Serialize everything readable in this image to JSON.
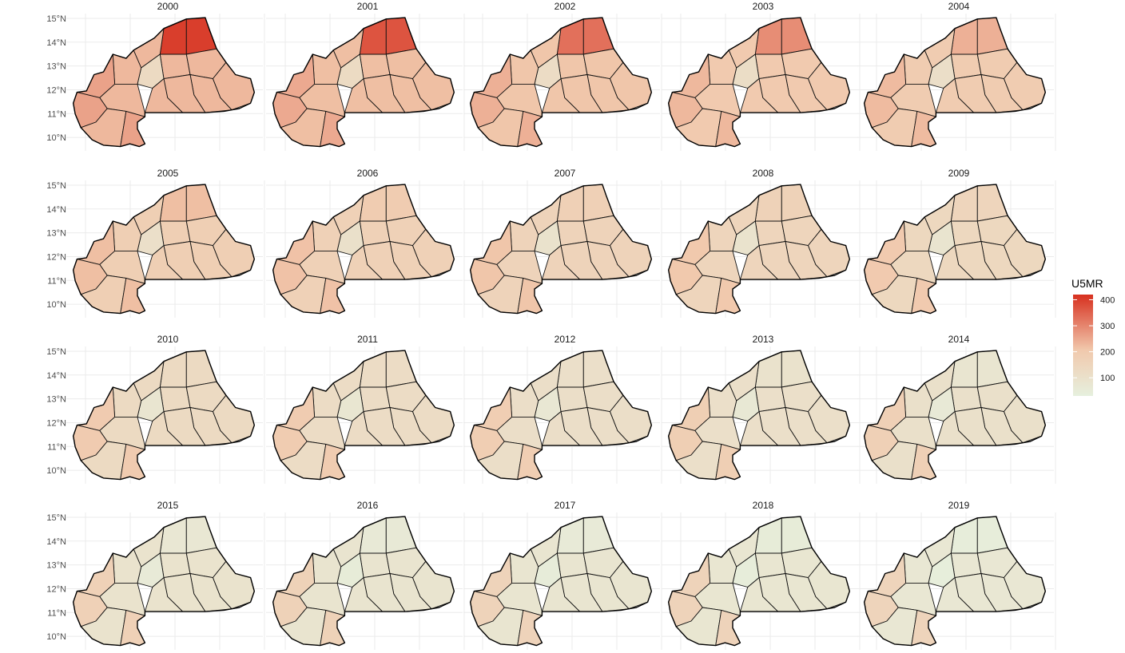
{
  "figure": {
    "type": "faceted choropleth map",
    "fill_variable": "U5MR",
    "ncol": 5,
    "nrow": 4
  },
  "facets": [
    "2000",
    "2001",
    "2002",
    "2003",
    "2004",
    "2005",
    "2006",
    "2007",
    "2008",
    "2009",
    "2010",
    "2011",
    "2012",
    "2013",
    "2014",
    "2015",
    "2016",
    "2017",
    "2018",
    "2019"
  ],
  "y_axis": {
    "tick_labels": [
      "15°N",
      "14°N",
      "13°N",
      "12°N",
      "11°N",
      "10°N"
    ],
    "tick_values": [
      15,
      14,
      13,
      12,
      11,
      10
    ]
  },
  "legend": {
    "title": "U5MR",
    "ticks": [
      "400",
      "300",
      "200",
      "100"
    ],
    "tick_values": [
      400,
      300,
      200,
      100
    ],
    "range": [
      30,
      420
    ],
    "colors": {
      "low": "#e6f0de",
      "mid": "#f1c9ad",
      "high": "#d7301f"
    }
  },
  "chart_data": {
    "type": "heatmap",
    "series_label": "U5MR",
    "years": [
      2000,
      2001,
      2002,
      2003,
      2004,
      2005,
      2006,
      2007,
      2008,
      2009,
      2010,
      2011,
      2012,
      2013,
      2014,
      2015,
      2016,
      2017,
      2018,
      2019
    ],
    "northern_region_max": [
      400,
      370,
      330,
      290,
      240,
      220,
      190,
      175,
      165,
      150,
      130,
      120,
      105,
      95,
      80,
      70,
      60,
      55,
      50,
      45
    ],
    "typical_region": [
      230,
      220,
      210,
      200,
      190,
      180,
      170,
      160,
      150,
      140,
      130,
      120,
      110,
      105,
      100,
      90,
      85,
      80,
      75,
      70
    ],
    "ouagadougou_region": [
      130,
      125,
      120,
      115,
      110,
      105,
      100,
      95,
      90,
      85,
      80,
      75,
      70,
      65,
      60,
      55,
      50,
      48,
      45,
      40
    ],
    "southwest_high": [
      260,
      250,
      240,
      230,
      225,
      220,
      215,
      210,
      205,
      200,
      195,
      190,
      185,
      180,
      175,
      170,
      165,
      160,
      160,
      155
    ],
    "ylim": [
      9.5,
      15.2
    ]
  }
}
